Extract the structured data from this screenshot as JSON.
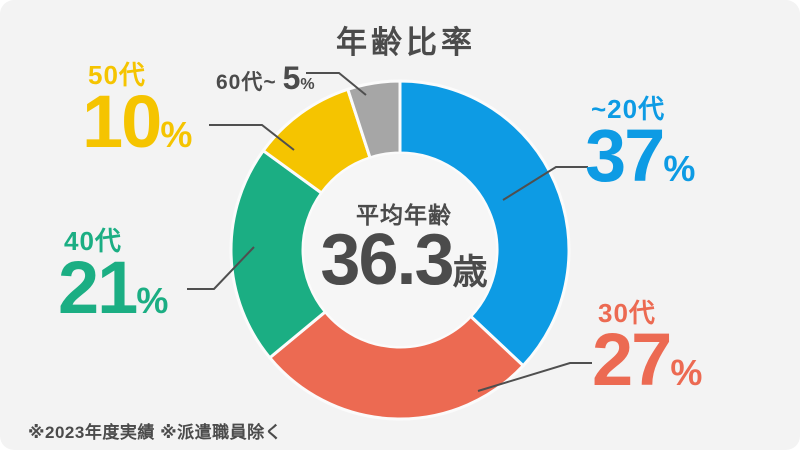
{
  "chart_data": {
    "type": "pie",
    "subtype": "donut",
    "title": "年齢比率",
    "categories": [
      "~20代",
      "30代",
      "40代",
      "50代",
      "60代~"
    ],
    "values": [
      37,
      27,
      21,
      10,
      5
    ],
    "unit": "%",
    "colors": [
      "#0d9be4",
      "#ec6a52",
      "#1bae83",
      "#f5c400",
      "#a6a6a6"
    ],
    "direction": "clockwise",
    "start_angle_deg": 0,
    "center": {
      "label": "平均年齢",
      "value": "36.3",
      "unit": "歳"
    },
    "footnote": "※2023年度実績 ※派遣職員除く",
    "background_color": "#f3f3f3",
    "text_color": "#4b4b4b"
  }
}
